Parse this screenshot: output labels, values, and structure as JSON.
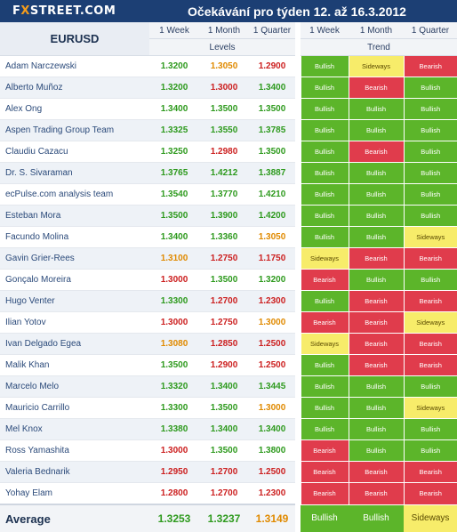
{
  "header": {
    "logo_prefix": "F",
    "logo_x": "X",
    "logo_suffix": "STREET.COM",
    "title": "Očekávání pro týden 12. až 16.3.2012"
  },
  "table": {
    "pair": "EURUSD",
    "columns": [
      "1 Week",
      "1 Month",
      "1 Quarter",
      "1 Week",
      "1 Month",
      "1 Quarter"
    ],
    "group_levels": "Levels",
    "group_trend": "Trend",
    "rows": [
      {
        "name": "Adam Narczewski",
        "levels": [
          "1.3200",
          "1.3050",
          "1.2900"
        ],
        "trends": [
          "Bullish",
          "Sideways",
          "Bearish"
        ]
      },
      {
        "name": "Alberto Muñoz",
        "levels": [
          "1.3200",
          "1.3000",
          "1.3400"
        ],
        "trends": [
          "Bullish",
          "Bearish",
          "Bullish"
        ]
      },
      {
        "name": "Alex Ong",
        "levels": [
          "1.3400",
          "1.3500",
          "1.3500"
        ],
        "trends": [
          "Bullish",
          "Bullish",
          "Bullish"
        ]
      },
      {
        "name": "Aspen Trading Group Team",
        "levels": [
          "1.3325",
          "1.3550",
          "1.3785"
        ],
        "trends": [
          "Bullish",
          "Bullish",
          "Bullish"
        ]
      },
      {
        "name": "Claudiu Cazacu",
        "levels": [
          "1.3250",
          "1.2980",
          "1.3500"
        ],
        "trends": [
          "Bullish",
          "Bearish",
          "Bullish"
        ]
      },
      {
        "name": "Dr. S. Sivaraman",
        "levels": [
          "1.3765",
          "1.4212",
          "1.3887"
        ],
        "trends": [
          "Bullish",
          "Bullish",
          "Bullish"
        ]
      },
      {
        "name": "ecPulse.com analysis team",
        "levels": [
          "1.3540",
          "1.3770",
          "1.4210"
        ],
        "trends": [
          "Bullish",
          "Bullish",
          "Bullish"
        ]
      },
      {
        "name": "Esteban Mora",
        "levels": [
          "1.3500",
          "1.3900",
          "1.4200"
        ],
        "trends": [
          "Bullish",
          "Bullish",
          "Bullish"
        ]
      },
      {
        "name": "Facundo Molina",
        "levels": [
          "1.3400",
          "1.3360",
          "1.3050"
        ],
        "trends": [
          "Bullish",
          "Bullish",
          "Sideways"
        ]
      },
      {
        "name": "Gavin Grier-Rees",
        "levels": [
          "1.3100",
          "1.2750",
          "1.1750"
        ],
        "trends": [
          "Sideways",
          "Bearish",
          "Bearish"
        ]
      },
      {
        "name": "Gonçalo Moreira",
        "levels": [
          "1.3000",
          "1.3500",
          "1.3200"
        ],
        "trends": [
          "Bearish",
          "Bullish",
          "Bullish"
        ]
      },
      {
        "name": "Hugo Venter",
        "levels": [
          "1.3300",
          "1.2700",
          "1.2300"
        ],
        "trends": [
          "Bullish",
          "Bearish",
          "Bearish"
        ]
      },
      {
        "name": "Ilian Yotov",
        "levels": [
          "1.3000",
          "1.2750",
          "1.3000"
        ],
        "trends": [
          "Bearish",
          "Bearish",
          "Sideways"
        ]
      },
      {
        "name": "Ivan Delgado Egea",
        "levels": [
          "1.3080",
          "1.2850",
          "1.2500"
        ],
        "trends": [
          "Sideways",
          "Bearish",
          "Bearish"
        ]
      },
      {
        "name": "Malik Khan",
        "levels": [
          "1.3500",
          "1.2900",
          "1.2500"
        ],
        "trends": [
          "Bullish",
          "Bearish",
          "Bearish"
        ]
      },
      {
        "name": "Marcelo Melo",
        "levels": [
          "1.3320",
          "1.3400",
          "1.3445"
        ],
        "trends": [
          "Bullish",
          "Bullish",
          "Bullish"
        ]
      },
      {
        "name": "Mauricio Carrillo",
        "levels": [
          "1.3300",
          "1.3500",
          "1.3000"
        ],
        "trends": [
          "Bullish",
          "Bullish",
          "Sideways"
        ]
      },
      {
        "name": "Mel Knox",
        "levels": [
          "1.3380",
          "1.3400",
          "1.3400"
        ],
        "trends": [
          "Bullish",
          "Bullish",
          "Bullish"
        ]
      },
      {
        "name": "Ross Yamashita",
        "levels": [
          "1.3000",
          "1.3500",
          "1.3800"
        ],
        "trends": [
          "Bearish",
          "Bullish",
          "Bullish"
        ]
      },
      {
        "name": "Valeria Bednarik",
        "levels": [
          "1.2950",
          "1.2700",
          "1.2500"
        ],
        "trends": [
          "Bearish",
          "Bearish",
          "Bearish"
        ]
      },
      {
        "name": "Yohay Elam",
        "levels": [
          "1.2800",
          "1.2700",
          "1.2300"
        ],
        "trends": [
          "Bearish",
          "Bearish",
          "Bearish"
        ]
      }
    ],
    "level_colors": [
      [
        "green",
        "orange",
        "red"
      ],
      [
        "green",
        "red",
        "green"
      ],
      [
        "green",
        "green",
        "green"
      ],
      [
        "green",
        "green",
        "green"
      ],
      [
        "green",
        "red",
        "green"
      ],
      [
        "green",
        "green",
        "green"
      ],
      [
        "green",
        "green",
        "green"
      ],
      [
        "green",
        "green",
        "green"
      ],
      [
        "green",
        "green",
        "orange"
      ],
      [
        "orange",
        "red",
        "red"
      ],
      [
        "red",
        "green",
        "green"
      ],
      [
        "green",
        "red",
        "red"
      ],
      [
        "red",
        "red",
        "orange"
      ],
      [
        "orange",
        "red",
        "red"
      ],
      [
        "green",
        "red",
        "red"
      ],
      [
        "green",
        "green",
        "green"
      ],
      [
        "green",
        "green",
        "orange"
      ],
      [
        "green",
        "green",
        "green"
      ],
      [
        "red",
        "green",
        "green"
      ],
      [
        "red",
        "red",
        "red"
      ],
      [
        "red",
        "red",
        "red"
      ]
    ],
    "average": {
      "label": "Average",
      "levels": [
        "1.3253",
        "1.3237",
        "1.3149"
      ],
      "level_colors": [
        "green",
        "green",
        "orange"
      ],
      "trends": [
        "Bullish",
        "Bullish",
        "Sideways"
      ]
    }
  },
  "colors": {
    "bullish": "#5cb52a",
    "bearish": "#e03c4c",
    "sideways": "#f7ec6a",
    "header_bg": "#1c3f74"
  }
}
